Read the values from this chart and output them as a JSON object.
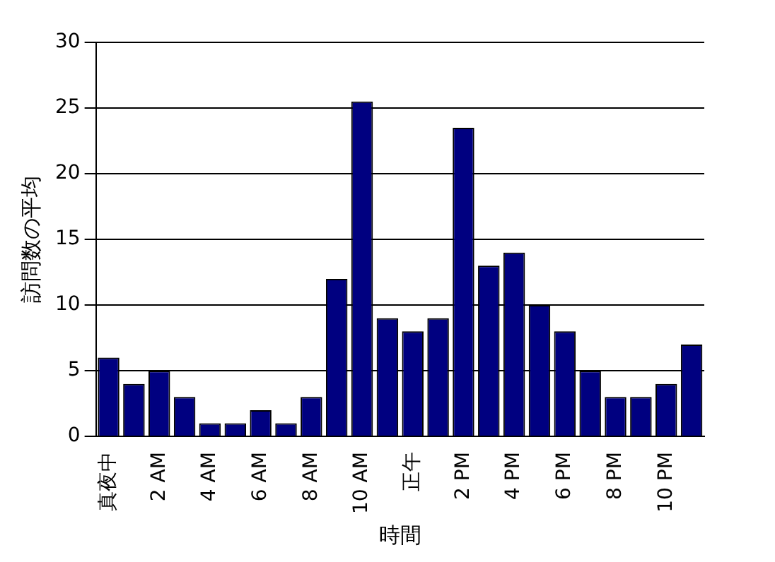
{
  "chart_data": {
    "type": "bar",
    "xlabel": "時間",
    "ylabel": "訪問数の平均",
    "categories": [
      "真夜中",
      null,
      "2 AM",
      null,
      "4 AM",
      null,
      "6 AM",
      null,
      "8 AM",
      null,
      "10 AM",
      null,
      "正午",
      null,
      "2 PM",
      null,
      "4 PM",
      null,
      "6 PM",
      null,
      "8 PM",
      null,
      "10 PM",
      null
    ],
    "values": [
      6,
      4,
      5,
      3,
      1,
      1,
      2,
      1,
      3,
      12,
      25.5,
      9,
      8,
      9,
      23.5,
      13,
      14,
      10,
      8,
      5,
      3,
      3,
      4,
      7
    ],
    "color": "#000080",
    "ylim": [
      0,
      30
    ],
    "yticks": [
      0,
      5,
      10,
      15,
      20,
      25,
      30
    ],
    "grid": "y",
    "legend": false
  }
}
